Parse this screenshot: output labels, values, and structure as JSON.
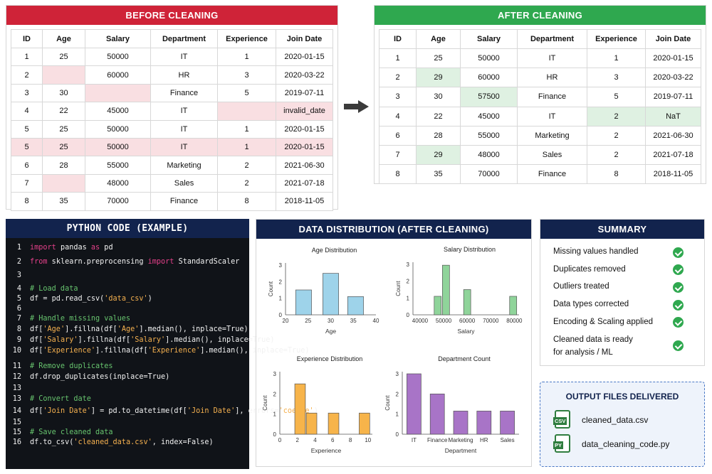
{
  "before": {
    "title": "BEFORE CLEANING",
    "headers": [
      "ID",
      "Age",
      "Salary",
      "Department",
      "Experience",
      "Join Date"
    ],
    "rows": [
      [
        "1",
        "25",
        "50000",
        "IT",
        "1",
        "2020-01-15"
      ],
      [
        "2",
        "",
        "60000",
        "HR",
        "3",
        "2020-03-22"
      ],
      [
        "3",
        "30",
        "",
        "Finance",
        "5",
        "2019-07-11"
      ],
      [
        "4",
        "22",
        "45000",
        "IT",
        "",
        "invalid_date"
      ],
      [
        "5",
        "25",
        "50000",
        "IT",
        "1",
        "2020-01-15"
      ],
      [
        "5",
        "25",
        "50000",
        "IT",
        "1",
        "2020-01-15"
      ],
      [
        "6",
        "28",
        "55000",
        "Marketing",
        "2",
        "2021-06-30"
      ],
      [
        "7",
        "",
        "48000",
        "Sales",
        "2",
        "2021-07-18"
      ],
      [
        "8",
        "35",
        "70000",
        "Finance",
        "8",
        "2018-11-05"
      ]
    ]
  },
  "after": {
    "title": "AFTER CLEANING",
    "headers": [
      "ID",
      "Age",
      "Salary",
      "Department",
      "Experience",
      "Join Date"
    ],
    "rows": [
      [
        "1",
        "25",
        "50000",
        "IT",
        "1",
        "2020-01-15"
      ],
      [
        "2",
        "29",
        "60000",
        "HR",
        "3",
        "2020-03-22"
      ],
      [
        "3",
        "30",
        "57500",
        "Finance",
        "5",
        "2019-07-11"
      ],
      [
        "4",
        "22",
        "45000",
        "IT",
        "2",
        "NaT"
      ],
      [
        "6",
        "28",
        "55000",
        "Marketing",
        "2",
        "2021-06-30"
      ],
      [
        "7",
        "29",
        "48000",
        "Sales",
        "2",
        "2021-07-18"
      ],
      [
        "8",
        "35",
        "70000",
        "Finance",
        "8",
        "2018-11-05"
      ]
    ]
  },
  "code": {
    "title": "PYTHON CODE (EXAMPLE)",
    "lines": [
      {
        "n": "1",
        "parts": [
          [
            "kw",
            "import"
          ],
          [
            "t",
            " pandas "
          ],
          [
            "kw",
            "as"
          ],
          [
            "t",
            " pd"
          ]
        ]
      },
      {
        "n": "2",
        "parts": [
          [
            "kw",
            "from"
          ],
          [
            "t",
            " sklearn.preprocensing "
          ],
          [
            "kw",
            "import"
          ],
          [
            "t",
            " StandardScaler"
          ]
        ]
      },
      {
        "n": "3",
        "parts": []
      },
      {
        "n": "4",
        "parts": [
          [
            "cm",
            "# Load data"
          ]
        ]
      },
      {
        "n": "5",
        "parts": [
          [
            "t",
            "df = pd.read_csv("
          ],
          [
            "str",
            "'data_csv'"
          ],
          [
            "t",
            ")"
          ]
        ]
      },
      {
        "n": "6",
        "parts": []
      },
      {
        "n": "7",
        "parts": [
          [
            "cm",
            "# Handle missing values"
          ]
        ]
      },
      {
        "n": "8",
        "parts": [
          [
            "t",
            "df["
          ],
          [
            "str",
            "'Age'"
          ],
          [
            "t",
            "].fillna(df["
          ],
          [
            "str",
            "'Age'"
          ],
          [
            "t",
            "].median(), inplace=True)"
          ]
        ]
      },
      {
        "n": "9",
        "parts": [
          [
            "t",
            "df["
          ],
          [
            "str",
            "'Salary'"
          ],
          [
            "t",
            "].fillna(df["
          ],
          [
            "str",
            "'Salary'"
          ],
          [
            "t",
            "].median(), inplace=True)"
          ]
        ]
      },
      {
        "n": "10",
        "parts": [
          [
            "t",
            "df["
          ],
          [
            "str",
            "'Experience'"
          ],
          [
            "t",
            "].fillna(df["
          ],
          [
            "str",
            "'Experience'"
          ],
          [
            "t",
            "].median(), inplace=True)"
          ]
        ]
      },
      {
        "n": "11",
        "parts": [
          [
            "cm",
            "# Remove duplicates"
          ]
        ]
      },
      {
        "n": "12",
        "parts": [
          [
            "t",
            "df.drop_duplicates(inplace=True)"
          ]
        ]
      },
      {
        "n": "13",
        "parts": []
      },
      {
        "n": "13",
        "parts": [
          [
            "cm",
            "# Convert date"
          ]
        ]
      },
      {
        "n": "14",
        "parts": [
          [
            "t",
            "df["
          ],
          [
            "str",
            "'Join Date'"
          ],
          [
            "t",
            "] = pd.to_datetime(df["
          ],
          [
            "str",
            "'Join Date'"
          ],
          [
            "t",
            "], errors="
          ],
          [
            "str",
            "'coerce'"
          ],
          [
            "t",
            ")"
          ]
        ]
      },
      {
        "n": "15",
        "parts": []
      },
      {
        "n": "15",
        "parts": [
          [
            "cm",
            "# Save cleaned data"
          ]
        ]
      },
      {
        "n": "16",
        "parts": [
          [
            "t",
            "df.to_csv("
          ],
          [
            "str",
            "'cleaned_data.csv'"
          ],
          [
            "t",
            ", index=False)"
          ]
        ]
      }
    ]
  },
  "distribution": {
    "title": "DATA DISTRIBUTION (AFTER CLEANING)"
  },
  "chart_data": [
    {
      "type": "bar",
      "title": "Age Distribution",
      "xlabel": "Age",
      "ylabel": "Count",
      "x_ticks": [
        "20",
        "25",
        "30",
        "35",
        "40"
      ],
      "y_ticks": [
        "0",
        "1",
        "2",
        "3"
      ],
      "xlim": [
        20,
        40
      ],
      "ylim": [
        0,
        3
      ],
      "bins": [
        {
          "center": 24,
          "value": 1.5
        },
        {
          "center": 30,
          "value": 2.5
        },
        {
          "center": 35.5,
          "value": 1.1
        }
      ],
      "bin_width": 3.5,
      "color": "#9ed3ea"
    },
    {
      "type": "bar",
      "title": "Salary Distribution",
      "xlabel": "Salary",
      "ylabel": "Count",
      "x_ticks": [
        "40000",
        "50000",
        "60000",
        "70000",
        "80000"
      ],
      "y_ticks": [
        "0",
        "1",
        "2",
        "3"
      ],
      "xlim": [
        37000,
        82000
      ],
      "ylim": [
        0,
        3
      ],
      "bins": [
        {
          "center": 47500,
          "value": 1.1
        },
        {
          "center": 51000,
          "value": 2.95
        },
        {
          "center": 60000,
          "value": 1.5
        },
        {
          "center": 79500,
          "value": 1.1
        }
      ],
      "bin_width": 3000,
      "color": "#8fd49a"
    },
    {
      "type": "bar",
      "title": "Experience Distribution",
      "xlabel": "Experience",
      "ylabel": "Count",
      "x_ticks": [
        "0",
        "2",
        "4",
        "6",
        "8",
        "10"
      ],
      "y_ticks": [
        "0",
        "1",
        "2",
        "3"
      ],
      "xlim": [
        0,
        10.5
      ],
      "ylim": [
        0,
        3
      ],
      "bins": [
        {
          "center": 2.3,
          "value": 2.5
        },
        {
          "center": 3.6,
          "value": 1.05
        },
        {
          "center": 6.1,
          "value": 1.05
        },
        {
          "center": 9.6,
          "value": 1.05
        }
      ],
      "bin_width": 1.2,
      "color": "#f7b44a"
    },
    {
      "type": "bar",
      "title": "Department Count",
      "xlabel": "Department",
      "ylabel": "Count",
      "categories": [
        "IT",
        "Finance",
        "Marketing",
        "HR",
        "Sales"
      ],
      "values": [
        3,
        2,
        1.15,
        1.15,
        1.15
      ],
      "y_ticks": [
        "0",
        "1",
        "2",
        "3"
      ],
      "ylim": [
        0,
        3
      ],
      "color": "#a874c7"
    }
  ],
  "summary": {
    "title": "SUMMARY",
    "items": [
      "Missing values handled",
      "Duplicates removed",
      "Outliers treated",
      "Data types corrected",
      "Encoding & Scaling applied"
    ],
    "last_line1": "Cleaned data is ready",
    "last_line2": "for analysis / ML"
  },
  "output": {
    "title": "OUTPUT FILES DELIVERED",
    "files": [
      {
        "badge": "CSV",
        "name": "cleaned_data.csv"
      },
      {
        "badge": "PY",
        "name": "data_cleaning_code.py"
      }
    ]
  },
  "colors": {
    "before_banner": "#cf2338",
    "after_banner": "#2fa84f",
    "dark_banner": "#12234d",
    "missing_highlight": "#f9dfe2",
    "filled_highlight": "#dff1e2",
    "check_green": "#2fa84f"
  }
}
